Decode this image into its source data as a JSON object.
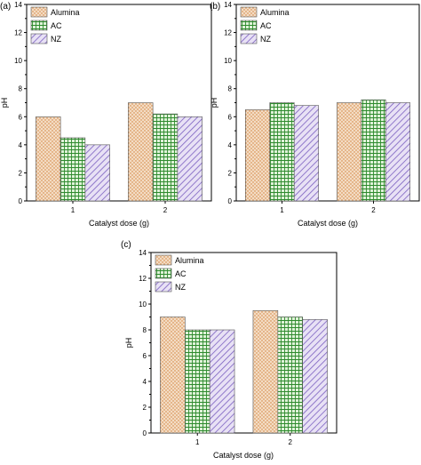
{
  "colors": {
    "Alumina": {
      "fill": "#f3dcc4",
      "pattern": "#d07c32"
    },
    "AC": {
      "fill": "#dff2d8",
      "pattern": "#2e8b2e"
    },
    "NZ": {
      "fill": "#e8e1f5",
      "pattern": "#7a5fc0"
    }
  },
  "chart_data": [
    {
      "type": "bar",
      "panel_label": "(a)",
      "categories": [
        "1",
        "2"
      ],
      "series": [
        {
          "name": "Alumina",
          "values": [
            6.0,
            7.0
          ]
        },
        {
          "name": "AC",
          "values": [
            4.5,
            6.2
          ]
        },
        {
          "name": "NZ",
          "values": [
            4.0,
            6.0
          ]
        }
      ],
      "xlabel": "Catalyst dose (g)",
      "ylabel": "pH",
      "ylim": [
        0,
        14
      ],
      "yticks": [
        "0",
        "2",
        "4",
        "6",
        "8",
        "10",
        "12",
        "14"
      ],
      "legend": "top-left",
      "grid": false
    },
    {
      "type": "bar",
      "panel_label": "(b)",
      "categories": [
        "1",
        "2"
      ],
      "series": [
        {
          "name": "Alumina",
          "values": [
            6.5,
            7.0
          ]
        },
        {
          "name": "AC",
          "values": [
            7.0,
            7.2
          ]
        },
        {
          "name": "NZ",
          "values": [
            6.8,
            7.0
          ]
        }
      ],
      "xlabel": "Catalyst dose (g)",
      "ylabel": "pH",
      "ylim": [
        0,
        14
      ],
      "yticks": [
        "0",
        "2",
        "4",
        "6",
        "8",
        "10",
        "12",
        "14"
      ],
      "legend": "top-left",
      "grid": false
    },
    {
      "type": "bar",
      "panel_label": "(c)",
      "categories": [
        "1",
        "2"
      ],
      "series": [
        {
          "name": "Alumina",
          "values": [
            9.0,
            9.5
          ]
        },
        {
          "name": "AC",
          "values": [
            8.0,
            9.0
          ]
        },
        {
          "name": "NZ",
          "values": [
            8.0,
            8.8
          ]
        }
      ],
      "xlabel": "Catalyst dose (g)",
      "ylabel": "pH",
      "ylim": [
        0,
        14
      ],
      "yticks": [
        "0",
        "2",
        "4",
        "6",
        "8",
        "10",
        "12",
        "14"
      ],
      "legend": "top-left",
      "grid": false
    }
  ]
}
